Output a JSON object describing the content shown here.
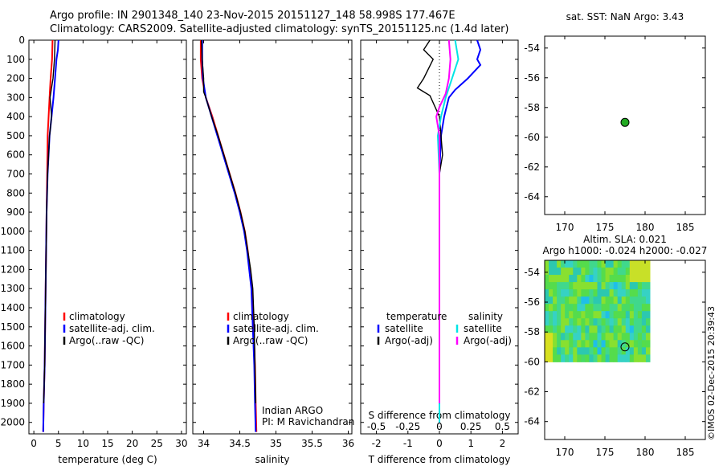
{
  "header": {
    "line1": "Argo profile: IN 2901348_140 23-Nov-2015 20151127_148 58.998S 177.467E",
    "line2": "Climatology: CARS2009. Satellite-adjusted climatology: synTS_20151125.nc (1.4d later)"
  },
  "colors": {
    "climatology": "#ff0000",
    "satellite": "#0000ff",
    "argo": "#000000",
    "sat_salinity": "#00e5e5",
    "argo_salinity": "#ff00ff",
    "marker": "#22aa22"
  },
  "chart_data": [
    {
      "type": "line",
      "id": "temperature",
      "xlabel": "temperature (deg C)",
      "xlim": [
        -1,
        31
      ],
      "xticks": [
        0,
        5,
        10,
        15,
        20,
        25,
        30
      ],
      "ylim": [
        2060,
        0
      ],
      "yticks": [
        0,
        100,
        200,
        300,
        400,
        500,
        600,
        700,
        800,
        900,
        1000,
        1100,
        1200,
        1300,
        1400,
        1500,
        1600,
        1700,
        1800,
        1900,
        2000
      ],
      "legend": [
        "climatology",
        "satellite-adj. clim.",
        "Argo(..raw -QC)"
      ],
      "series": [
        {
          "name": "climatology",
          "color": "red",
          "points": [
            [
              3.8,
              0
            ],
            [
              3.7,
              100
            ],
            [
              3.4,
              200
            ],
            [
              3.2,
              300
            ],
            [
              3.0,
              400
            ],
            [
              2.8,
              500
            ],
            [
              2.7,
              700
            ],
            [
              2.6,
              900
            ],
            [
              2.5,
              1100
            ],
            [
              2.4,
              1300
            ],
            [
              2.3,
              1500
            ],
            [
              2.2,
              1700
            ],
            [
              2.0,
              1900
            ],
            [
              1.9,
              2050
            ]
          ]
        },
        {
          "name": "satellite-adj. clim.",
          "color": "blue",
          "points": [
            [
              5.0,
              0
            ],
            [
              4.9,
              50
            ],
            [
              4.6,
              100
            ],
            [
              4.3,
              200
            ],
            [
              4.0,
              300
            ],
            [
              3.6,
              400
            ],
            [
              3.2,
              500
            ],
            [
              2.8,
              700
            ],
            [
              2.6,
              900
            ],
            [
              2.5,
              1100
            ],
            [
              2.4,
              1300
            ],
            [
              2.3,
              1500
            ],
            [
              2.2,
              1700
            ],
            [
              2.0,
              1900
            ],
            [
              1.9,
              2050
            ]
          ]
        },
        {
          "name": "Argo(..raw -QC)",
          "color": "black",
          "points": [
            [
              4.3,
              0
            ],
            [
              4.2,
              100
            ],
            [
              3.9,
              200
            ],
            [
              3.3,
              300
            ],
            [
              3.6,
              400
            ],
            [
              3.2,
              500
            ],
            [
              2.8,
              700
            ],
            [
              2.6,
              900
            ],
            [
              2.5,
              1100
            ],
            [
              2.4,
              1300
            ],
            [
              2.3,
              1500
            ],
            [
              2.2,
              1700
            ],
            [
              2.0,
              1900
            ]
          ]
        }
      ]
    },
    {
      "type": "line",
      "id": "salinity",
      "xlabel": "salinity",
      "xlim": [
        33.85,
        36.05
      ],
      "xticks": [
        34,
        34.5,
        35,
        35.5,
        36
      ],
      "ylim": [
        2060,
        0
      ],
      "legend": [
        "climatology",
        "satellite-adj. clim.",
        "Argo(..raw -QC)"
      ],
      "annotations": [
        "Indian ARGO",
        "PI: M Ravichandran"
      ],
      "series": [
        {
          "name": "climatology",
          "color": "red",
          "points": [
            [
              33.96,
              0
            ],
            [
              33.96,
              100
            ],
            [
              33.98,
              200
            ],
            [
              34.03,
              300
            ],
            [
              34.12,
              400
            ],
            [
              34.2,
              500
            ],
            [
              34.28,
              600
            ],
            [
              34.36,
              700
            ],
            [
              34.44,
              800
            ],
            [
              34.51,
              900
            ],
            [
              34.57,
              1000
            ],
            [
              34.61,
              1100
            ],
            [
              34.64,
              1200
            ],
            [
              34.67,
              1300
            ],
            [
              34.69,
              1500
            ],
            [
              34.71,
              1700
            ],
            [
              34.72,
              1900
            ],
            [
              34.73,
              2050
            ]
          ]
        },
        {
          "name": "satellite-adj. clim.",
          "color": "blue",
          "points": [
            [
              33.98,
              0
            ],
            [
              33.98,
              100
            ],
            [
              33.99,
              200
            ],
            [
              34.03,
              300
            ],
            [
              34.11,
              400
            ],
            [
              34.19,
              500
            ],
            [
              34.27,
              600
            ],
            [
              34.35,
              700
            ],
            [
              34.43,
              800
            ],
            [
              34.5,
              900
            ],
            [
              34.56,
              1000
            ],
            [
              34.6,
              1100
            ],
            [
              34.63,
              1200
            ],
            [
              34.66,
              1300
            ],
            [
              34.68,
              1500
            ],
            [
              34.7,
              1700
            ],
            [
              34.71,
              1900
            ],
            [
              34.72,
              2050
            ]
          ]
        },
        {
          "name": "Argo(..raw -QC)",
          "color": "black",
          "points": [
            [
              33.97,
              0
            ],
            [
              33.98,
              100
            ],
            [
              34.0,
              200
            ],
            [
              34.0,
              270
            ],
            [
              34.03,
              300
            ],
            [
              34.11,
              400
            ],
            [
              34.2,
              500
            ],
            [
              34.28,
              600
            ],
            [
              34.36,
              700
            ],
            [
              34.44,
              800
            ],
            [
              34.51,
              900
            ],
            [
              34.57,
              1000
            ],
            [
              34.61,
              1100
            ],
            [
              34.65,
              1200
            ],
            [
              34.68,
              1300
            ],
            [
              34.7,
              1500
            ],
            [
              34.71,
              1700
            ],
            [
              34.72,
              1900
            ]
          ]
        }
      ]
    },
    {
      "type": "line",
      "id": "differences",
      "xlabel": "T difference from climatology",
      "xlim": [
        -2.5,
        2.5
      ],
      "xticks": [
        -2,
        -1,
        0,
        1,
        2
      ],
      "x2label": "S difference from climatology",
      "x2ticks": [
        "-0.5",
        "-0.25",
        "0",
        "0.25",
        "0.5"
      ],
      "x2tick_positions": [
        -2,
        -1,
        0,
        1,
        2
      ],
      "ylim": [
        2060,
        0
      ],
      "legend": {
        "temperature": [
          "temperature",
          "satellite",
          "Argo(-adj)"
        ],
        "salinity": [
          "salinity",
          "satellite",
          "Argo(-adj)"
        ]
      },
      "series": [
        {
          "name": "T satellite",
          "color": "blue",
          "points": [
            [
              1.2,
              0
            ],
            [
              1.3,
              50
            ],
            [
              1.2,
              100
            ],
            [
              1.3,
              130
            ],
            [
              0.9,
              200
            ],
            [
              0.5,
              260
            ],
            [
              0.3,
              300
            ],
            [
              0.15,
              400
            ],
            [
              0.05,
              500
            ],
            [
              0.0,
              700
            ],
            [
              0.0,
              2000
            ]
          ]
        },
        {
          "name": "T Argo(-adj)",
          "color": "black",
          "points": [
            [
              -0.3,
              0
            ],
            [
              -0.5,
              50
            ],
            [
              -0.2,
              100
            ],
            [
              -0.5,
              200
            ],
            [
              -0.7,
              250
            ],
            [
              -0.3,
              290
            ],
            [
              0.0,
              400
            ],
            [
              0.1,
              600
            ],
            [
              0.0,
              700
            ],
            [
              0.0,
              1900
            ]
          ]
        },
        {
          "name": "S satellite",
          "color": "cyan",
          "points": [
            [
              0.5,
              0
            ],
            [
              0.6,
              100
            ],
            [
              0.4,
              200
            ],
            [
              0.2,
              300
            ],
            [
              0.05,
              400
            ],
            [
              -0.05,
              500
            ],
            [
              0.0,
              700
            ],
            [
              0.0,
              2000
            ]
          ]
        },
        {
          "name": "S Argo(-adj)",
          "color": "magenta",
          "points": [
            [
              0.3,
              0
            ],
            [
              0.35,
              100
            ],
            [
              0.3,
              200
            ],
            [
              0.2,
              280
            ],
            [
              0.0,
              350
            ],
            [
              -0.1,
              400
            ],
            [
              0.0,
              500
            ],
            [
              0.0,
              1900
            ]
          ]
        }
      ]
    },
    {
      "type": "scatter",
      "id": "sst_map",
      "title": "sat. SST: NaN Argo: 3.43",
      "xlim": [
        167.5,
        187.5
      ],
      "xticks": [
        170,
        175,
        180,
        185
      ],
      "ylim": [
        -65.2,
        -53.2
      ],
      "yticks": [
        -54,
        -56,
        -58,
        -60,
        -62,
        -64
      ],
      "points": [
        [
          177.5,
          -59.0
        ]
      ]
    },
    {
      "type": "heatmap",
      "id": "sla_map",
      "title_line1": "Altim. SLA: 0.021",
      "title_line2": "Argo h1000: -0.024 h2000: -0.027",
      "xlim": [
        167.5,
        187.5
      ],
      "xticks": [
        170,
        175,
        180,
        185
      ],
      "ylim": [
        -65.2,
        -53.2
      ],
      "yticks": [
        -54,
        -56,
        -58,
        -60,
        -62,
        -64
      ],
      "field_extent": {
        "lon": [
          167.5,
          180.6
        ],
        "lat": [
          -60,
          -53.2
        ]
      },
      "points": [
        [
          177.5,
          -59.0
        ]
      ]
    }
  ],
  "footer": {
    "timestamp": "©IMOS 02-Dec-2015 20:39:43"
  }
}
